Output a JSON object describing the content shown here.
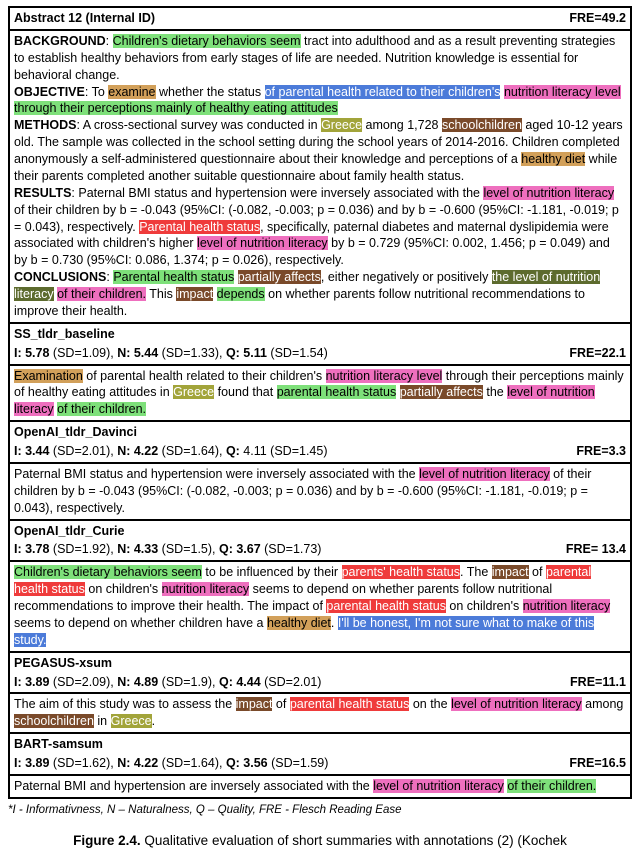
{
  "colors": {
    "green": "#7ee07a",
    "pink": "#ee6fbe",
    "blue": "#4c7bd9",
    "red": "#ef3b3b",
    "tan": "#d2a05a",
    "olive": "#a2a43a",
    "brown": "#7a4a2a",
    "darkolive": "#5d6b2e",
    "white": "#ffffff",
    "black": "#000000"
  },
  "header": {
    "left": "Abstract 12 (Internal ID)",
    "right": "FRE=49.2"
  },
  "abstract": [
    {
      "label": "BACKGROUND",
      "runs": [
        {
          "t": ": "
        },
        {
          "t": "Children's dietary behaviors seem",
          "bg": "green"
        },
        {
          "t": " tract into adulthood and as a result preventing strategies to establish healthy behaviors from early stages of life are needed. Nutrition knowledge is essential for behavioral change."
        }
      ]
    },
    {
      "label": "OBJECTIVE",
      "runs": [
        {
          "t": ": To "
        },
        {
          "t": "examine",
          "bg": "tan"
        },
        {
          "t": " whether the status "
        },
        {
          "t": "of parental health related to their children's",
          "bg": "blue",
          "fg": "white"
        },
        {
          "t": " "
        },
        {
          "t": "nutrition literacy level",
          "bg": "pink"
        },
        {
          "t": " "
        },
        {
          "t": "through their perceptions mainly of healthy eating attitudes",
          "bg": "green"
        }
      ]
    },
    {
      "label": "METHODS",
      "runs": [
        {
          "t": ": A cross-sectional survey was conducted in "
        },
        {
          "t": "Greece",
          "bg": "olive",
          "fg": "white"
        },
        {
          "t": " among 1,728 "
        },
        {
          "t": "schoolchildren",
          "bg": "brown",
          "fg": "white"
        },
        {
          "t": " aged 10-12 years old. The sample was collected in the school setting during the school years of 2014-2016. Children completed anonymously a self-administered questionnaire about their knowledge and perceptions of a "
        },
        {
          "t": "healthy diet",
          "bg": "tan"
        },
        {
          "t": " while their parents completed another suitable questionnaire about family health status."
        }
      ]
    },
    {
      "label": "RESULTS",
      "runs": [
        {
          "t": ": Paternal BMI status and hypertension were inversely associated with the "
        },
        {
          "t": "level of nutrition literacy",
          "bg": "pink"
        },
        {
          "t": " of their children by b = -0.043 (95%CI: (-0.082, -0.003; p = 0.036) and by b = -0.600 (95%CI: -1.181, -0.019; p = 0.043), respectively. "
        },
        {
          "t": "Parental health status",
          "bg": "red",
          "fg": "white"
        },
        {
          "t": ", specifically, paternal diabetes and maternal dyslipidemia were associated with children's higher "
        },
        {
          "t": "level of nutrition literacy",
          "bg": "pink"
        },
        {
          "t": " by b = 0.729 (95%CI: 0.002, 1.456; p = 0.049) and by b = 0.730 (95%CI: 0.086, 1.374; p = 0.026), respectively."
        }
      ]
    },
    {
      "label": "CONCLUSIONS",
      "runs": [
        {
          "t": ": "
        },
        {
          "t": "Parental health status",
          "bg": "green"
        },
        {
          "t": " "
        },
        {
          "t": "partially affects",
          "bg": "brown",
          "fg": "white"
        },
        {
          "t": ", either negatively or positively "
        },
        {
          "t": " the level of nutrition literacy",
          "bg": "darkolive",
          "fg": "white"
        },
        {
          "t": " "
        },
        {
          "t": "of their children.",
          "bg": "pink"
        },
        {
          "t": " This "
        },
        {
          "t": "impact",
          "bg": "brown",
          "fg": "white"
        },
        {
          "t": " "
        },
        {
          "t": "depends",
          "bg": "green"
        },
        {
          "t": " on whether parents follow nutritional recommendations to improve their health."
        }
      ]
    }
  ],
  "models": [
    {
      "name": "SS_tldr_baseline",
      "scores": {
        "I": "5.78",
        "I_sd": "1.09",
        "N": "5.44",
        "N_sd": "1.33",
        "Q": "5.11",
        "Q_sd": "1.54",
        "Q_bold": true,
        "FRE": "22.1"
      },
      "runs": [
        {
          "t": "Examination",
          "bg": "tan"
        },
        {
          "t": " of parental health related to their children's "
        },
        {
          "t": "nutrition literacy level",
          "bg": "pink"
        },
        {
          "t": " through their perceptions mainly of healthy eating attitudes in "
        },
        {
          "t": "Greece",
          "bg": "olive",
          "fg": "white"
        },
        {
          "t": " found that "
        },
        {
          "t": "parental health status",
          "bg": "green"
        },
        {
          "t": " "
        },
        {
          "t": "partially affects",
          "bg": "brown",
          "fg": "white"
        },
        {
          "t": " the "
        },
        {
          "t": "level of nutrition literacy",
          "bg": "pink"
        },
        {
          "t": " "
        },
        {
          "t": "of their children.",
          "bg": "green"
        }
      ]
    },
    {
      "name": "OpenAI_tldr_Davinci",
      "scores": {
        "I": "3.44",
        "I_sd": "2.01",
        "N": "4.22",
        "N_sd": "1.64",
        "Q": "4.11",
        "Q_sd": "1.45",
        "Q_bold": false,
        "FRE": "3.3"
      },
      "runs": [
        {
          "t": "Paternal BMI status and hypertension were inversely associated with the "
        },
        {
          "t": "level of nutrition literacy",
          "bg": "pink"
        },
        {
          "t": " of their children by b = -0.043 (95%CI: (-0.082, -0.003; p = 0.036) and by b = -0.600 (95%CI: -1.181, -0.019; p = 0.043), respectively."
        }
      ]
    },
    {
      "name": "OpenAI_tldr_Curie",
      "scores": {
        "I": "3.78",
        "I_sd": "1.92",
        "N": "4.33",
        "N_sd": "1.5",
        "Q": "3.67",
        "Q_sd": "1.73",
        "Q_bold": true,
        "FRE": "13.4",
        "FRE_prefix": "= "
      },
      "runs": [
        {
          "t": "Children's dietary behaviors seem",
          "bg": "green"
        },
        {
          "t": " to be influenced by their "
        },
        {
          "t": "parents' health status",
          "bg": "red",
          "fg": "white"
        },
        {
          "t": ". The "
        },
        {
          "t": "impact",
          "bg": "brown",
          "fg": "white"
        },
        {
          "t": " of "
        },
        {
          "t": "parental health status",
          "bg": "red",
          "fg": "white"
        },
        {
          "t": " on children's "
        },
        {
          "t": "nutrition literacy",
          "bg": "pink"
        },
        {
          "t": " seems to depend on whether parents follow nutritional recommendations to improve their health. The impact of "
        },
        {
          "t": "parental health status",
          "bg": "red",
          "fg": "white"
        },
        {
          "t": " on children's "
        },
        {
          "t": "nutrition literacy",
          "bg": "pink"
        },
        {
          "t": " seems to depend on whether children have a "
        },
        {
          "t": "healthy diet",
          "bg": "tan"
        },
        {
          "t": ". "
        },
        {
          "t": "I'll be honest, I'm not sure what to make of this study.",
          "bg": "blue",
          "fg": "white"
        }
      ]
    },
    {
      "name": "PEGASUS-xsum",
      "scores": {
        "I": "3.89",
        "I_sd": "2.09",
        "N": "4.89",
        "N_sd": "1.9",
        "Q": "4.44",
        "Q_sd": "2.01",
        "Q_bold": true,
        "FRE": "11.1"
      },
      "runs": [
        {
          "t": "The aim of this study was to assess the "
        },
        {
          "t": "impact",
          "bg": "brown",
          "fg": "white"
        },
        {
          "t": " of "
        },
        {
          "t": "parental health status",
          "bg": "red",
          "fg": "white"
        },
        {
          "t": " on the "
        },
        {
          "t": "level of nutrition literacy",
          "bg": "pink"
        },
        {
          "t": " among "
        },
        {
          "t": "schoolchildren",
          "bg": "brown",
          "fg": "white"
        },
        {
          "t": " in "
        },
        {
          "t": "Greece",
          "bg": "olive",
          "fg": "white"
        },
        {
          "t": "."
        }
      ]
    },
    {
      "name": "BART-samsum",
      "scores": {
        "I": "3.89",
        "I_sd": "1.62",
        "N": "4.22",
        "N_sd": "1.64",
        "Q": "3.56",
        "Q_sd": "1.59",
        "Q_bold": true,
        "FRE": "16.5"
      },
      "runs": [
        {
          "t": "Paternal BMI and hypertension are inversely associated with the "
        },
        {
          "t": "level of nutrition literacy",
          "bg": "pink"
        },
        {
          "t": " "
        },
        {
          "t": "of their children.",
          "bg": "green"
        }
      ]
    }
  ],
  "legend": "*I - Informativness, N – Naturalness, Q – Quality, FRE - Flesch Reading Ease",
  "caption": {
    "label": "Figure 2.4.",
    "text": " Qualitative evaluation of short summaries with annotations (2) (Kochek"
  }
}
